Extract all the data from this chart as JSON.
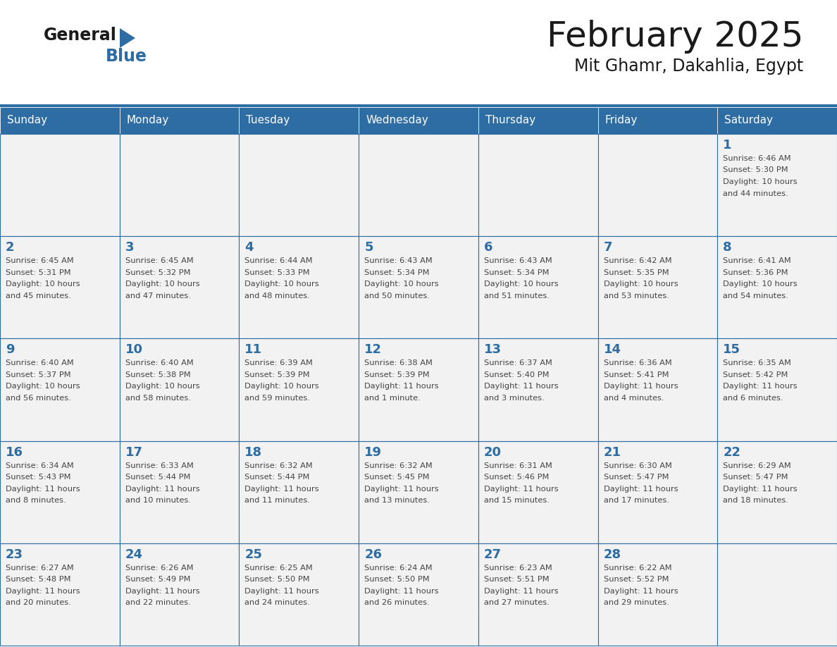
{
  "title": "February 2025",
  "subtitle": "Mit Ghamr, Dakahlia, Egypt",
  "days_of_week": [
    "Sunday",
    "Monday",
    "Tuesday",
    "Wednesday",
    "Thursday",
    "Friday",
    "Saturday"
  ],
  "header_bg": "#2E6DA4",
  "header_text": "#FFFFFF",
  "cell_bg": "#F2F2F2",
  "cell_border": "#2E6DA4",
  "day_num_color": "#2E6DA4",
  "info_text_color": "#444444",
  "title_color": "#1a1a1a",
  "weeks": [
    [
      {
        "day": null,
        "info": ""
      },
      {
        "day": null,
        "info": ""
      },
      {
        "day": null,
        "info": ""
      },
      {
        "day": null,
        "info": ""
      },
      {
        "day": null,
        "info": ""
      },
      {
        "day": null,
        "info": ""
      },
      {
        "day": 1,
        "info": "Sunrise: 6:46 AM\nSunset: 5:30 PM\nDaylight: 10 hours\nand 44 minutes."
      }
    ],
    [
      {
        "day": 2,
        "info": "Sunrise: 6:45 AM\nSunset: 5:31 PM\nDaylight: 10 hours\nand 45 minutes."
      },
      {
        "day": 3,
        "info": "Sunrise: 6:45 AM\nSunset: 5:32 PM\nDaylight: 10 hours\nand 47 minutes."
      },
      {
        "day": 4,
        "info": "Sunrise: 6:44 AM\nSunset: 5:33 PM\nDaylight: 10 hours\nand 48 minutes."
      },
      {
        "day": 5,
        "info": "Sunrise: 6:43 AM\nSunset: 5:34 PM\nDaylight: 10 hours\nand 50 minutes."
      },
      {
        "day": 6,
        "info": "Sunrise: 6:43 AM\nSunset: 5:34 PM\nDaylight: 10 hours\nand 51 minutes."
      },
      {
        "day": 7,
        "info": "Sunrise: 6:42 AM\nSunset: 5:35 PM\nDaylight: 10 hours\nand 53 minutes."
      },
      {
        "day": 8,
        "info": "Sunrise: 6:41 AM\nSunset: 5:36 PM\nDaylight: 10 hours\nand 54 minutes."
      }
    ],
    [
      {
        "day": 9,
        "info": "Sunrise: 6:40 AM\nSunset: 5:37 PM\nDaylight: 10 hours\nand 56 minutes."
      },
      {
        "day": 10,
        "info": "Sunrise: 6:40 AM\nSunset: 5:38 PM\nDaylight: 10 hours\nand 58 minutes."
      },
      {
        "day": 11,
        "info": "Sunrise: 6:39 AM\nSunset: 5:39 PM\nDaylight: 10 hours\nand 59 minutes."
      },
      {
        "day": 12,
        "info": "Sunrise: 6:38 AM\nSunset: 5:39 PM\nDaylight: 11 hours\nand 1 minute."
      },
      {
        "day": 13,
        "info": "Sunrise: 6:37 AM\nSunset: 5:40 PM\nDaylight: 11 hours\nand 3 minutes."
      },
      {
        "day": 14,
        "info": "Sunrise: 6:36 AM\nSunset: 5:41 PM\nDaylight: 11 hours\nand 4 minutes."
      },
      {
        "day": 15,
        "info": "Sunrise: 6:35 AM\nSunset: 5:42 PM\nDaylight: 11 hours\nand 6 minutes."
      }
    ],
    [
      {
        "day": 16,
        "info": "Sunrise: 6:34 AM\nSunset: 5:43 PM\nDaylight: 11 hours\nand 8 minutes."
      },
      {
        "day": 17,
        "info": "Sunrise: 6:33 AM\nSunset: 5:44 PM\nDaylight: 11 hours\nand 10 minutes."
      },
      {
        "day": 18,
        "info": "Sunrise: 6:32 AM\nSunset: 5:44 PM\nDaylight: 11 hours\nand 11 minutes."
      },
      {
        "day": 19,
        "info": "Sunrise: 6:32 AM\nSunset: 5:45 PM\nDaylight: 11 hours\nand 13 minutes."
      },
      {
        "day": 20,
        "info": "Sunrise: 6:31 AM\nSunset: 5:46 PM\nDaylight: 11 hours\nand 15 minutes."
      },
      {
        "day": 21,
        "info": "Sunrise: 6:30 AM\nSunset: 5:47 PM\nDaylight: 11 hours\nand 17 minutes."
      },
      {
        "day": 22,
        "info": "Sunrise: 6:29 AM\nSunset: 5:47 PM\nDaylight: 11 hours\nand 18 minutes."
      }
    ],
    [
      {
        "day": 23,
        "info": "Sunrise: 6:27 AM\nSunset: 5:48 PM\nDaylight: 11 hours\nand 20 minutes."
      },
      {
        "day": 24,
        "info": "Sunrise: 6:26 AM\nSunset: 5:49 PM\nDaylight: 11 hours\nand 22 minutes."
      },
      {
        "day": 25,
        "info": "Sunrise: 6:25 AM\nSunset: 5:50 PM\nDaylight: 11 hours\nand 24 minutes."
      },
      {
        "day": 26,
        "info": "Sunrise: 6:24 AM\nSunset: 5:50 PM\nDaylight: 11 hours\nand 26 minutes."
      },
      {
        "day": 27,
        "info": "Sunrise: 6:23 AM\nSunset: 5:51 PM\nDaylight: 11 hours\nand 27 minutes."
      },
      {
        "day": 28,
        "info": "Sunrise: 6:22 AM\nSunset: 5:52 PM\nDaylight: 11 hours\nand 29 minutes."
      },
      {
        "day": null,
        "info": ""
      }
    ]
  ]
}
